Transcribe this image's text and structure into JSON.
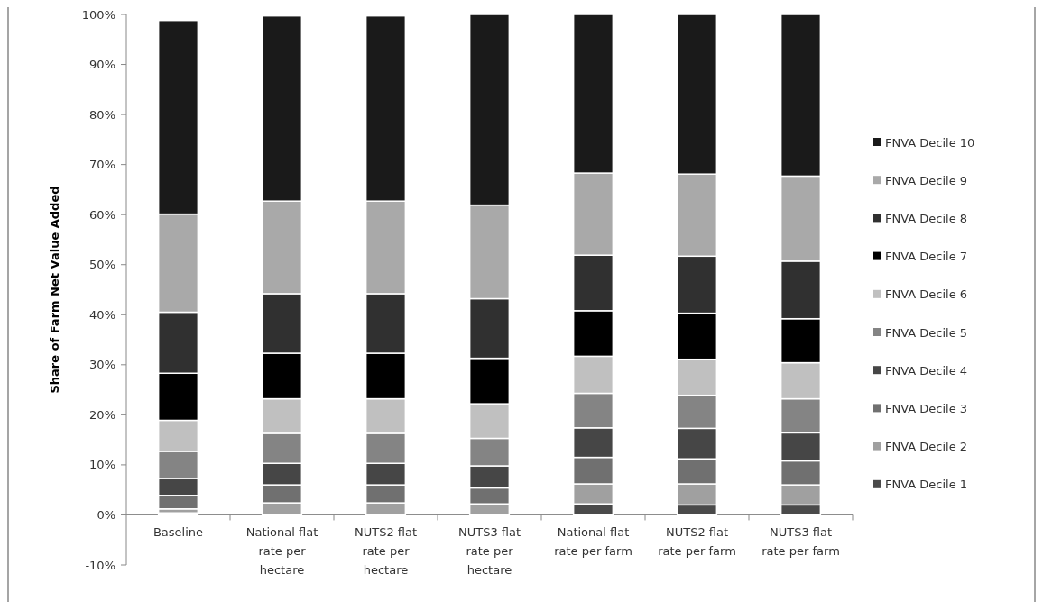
{
  "chart_data": {
    "type": "bar",
    "stacked": true,
    "ylabel": "Share of Farm Net Value Added",
    "categories": [
      "Baseline",
      "National flat rate per hectare",
      "NUTS2 flat rate per hectare",
      "NUTS3 flat rate per hectare",
      "National flat rate per farm",
      "NUTS2 flat rate per farm",
      "NUTS3 flat rate per farm"
    ],
    "ylim": [
      -10,
      100
    ],
    "yticks": [
      {
        "value": -10,
        "label": "-10%"
      },
      {
        "value": 0,
        "label": "0%"
      },
      {
        "value": 10,
        "label": "10%"
      },
      {
        "value": 20,
        "label": "20%"
      },
      {
        "value": 30,
        "label": "30%"
      },
      {
        "value": 40,
        "label": "40%"
      },
      {
        "value": 50,
        "label": "50%"
      },
      {
        "value": 60,
        "label": "60%"
      },
      {
        "value": 70,
        "label": "70%"
      },
      {
        "value": 80,
        "label": "80%"
      },
      {
        "value": 90,
        "label": "90%"
      },
      {
        "value": 100,
        "label": "100%"
      }
    ],
    "legend": "right",
    "grid": false,
    "series": [
      {
        "name": "FNVA Decile 1",
        "color": "#4a4a4a",
        "values": [
          0.4,
          0,
          0,
          0,
          2.2,
          2.0,
          2.0
        ]
      },
      {
        "name": "FNVA Decile 2",
        "color": "#a0a0a0",
        "values": [
          0.8,
          2.4,
          2.4,
          2.2,
          4.0,
          4.2,
          4.0
        ]
      },
      {
        "name": "FNVA Decile 3",
        "color": "#707070",
        "values": [
          2.7,
          3.6,
          3.6,
          3.2,
          5.3,
          5.0,
          4.8
        ]
      },
      {
        "name": "FNVA Decile 4",
        "color": "#464646",
        "values": [
          3.4,
          4.3,
          4.3,
          4.4,
          5.9,
          6.1,
          5.6
        ]
      },
      {
        "name": "FNVA Decile 5",
        "color": "#848484",
        "values": [
          5.4,
          6.0,
          6.0,
          5.5,
          6.9,
          6.6,
          6.8
        ]
      },
      {
        "name": "FNVA Decile 6",
        "color": "#c0c0c0",
        "values": [
          6.2,
          6.9,
          6.9,
          6.9,
          7.4,
          7.2,
          7.2
        ]
      },
      {
        "name": "FNVA Decile 7",
        "color": "#000000",
        "values": [
          9.4,
          9.1,
          9.1,
          9.1,
          9.1,
          9.2,
          8.8
        ]
      },
      {
        "name": "FNVA Decile 8",
        "color": "#303030",
        "values": [
          12.2,
          11.9,
          11.9,
          11.9,
          11.1,
          11.4,
          11.5
        ]
      },
      {
        "name": "FNVA Decile 9",
        "color": "#a9a9a9",
        "values": [
          19.6,
          18.5,
          18.5,
          18.7,
          16.4,
          16.4,
          17.0
        ]
      },
      {
        "name": "FNVA Decile 10",
        "color": "#1a1a1a",
        "values": [
          38.7,
          37.0,
          37.0,
          38.1,
          31.7,
          31.9,
          32.3
        ]
      }
    ]
  }
}
